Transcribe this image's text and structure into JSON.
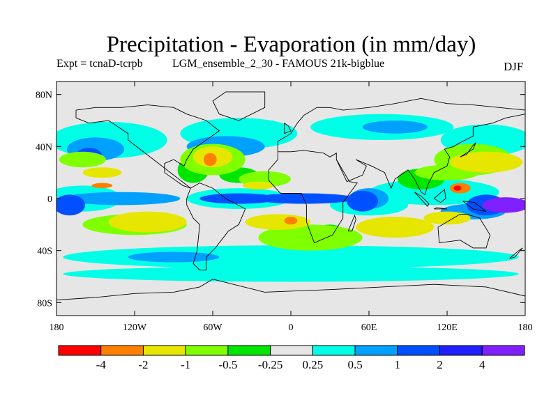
{
  "title": "Precipitation - Evaporation (in mm/day)",
  "experiment_label": "Expt = tcnaD-tcrpb",
  "run_label": "LGM_ensemble_2_30 - FAMOUS 21k-bigblue",
  "season": "DJF",
  "map": {
    "lat_ticks": [
      {
        "value": 80,
        "label": "80N"
      },
      {
        "value": 40,
        "label": "40N"
      },
      {
        "value": 0,
        "label": "0"
      },
      {
        "value": -40,
        "label": "40S"
      },
      {
        "value": -80,
        "label": "80S"
      }
    ],
    "lon_ticks": [
      {
        "value": -180,
        "label": "180"
      },
      {
        "value": -120,
        "label": "120W"
      },
      {
        "value": -60,
        "label": "60W"
      },
      {
        "value": 0,
        "label": "0"
      },
      {
        "value": 60,
        "label": "60E"
      },
      {
        "value": 120,
        "label": "120E"
      },
      {
        "value": 180,
        "label": "180"
      }
    ],
    "lon_range": [
      -180,
      180
    ],
    "lat_range": [
      -90,
      90
    ],
    "background_color": "#e6e6e6"
  },
  "colorbar": {
    "colors": [
      "#ff0000",
      "#ff8000",
      "#e6e600",
      "#80ff00",
      "#00e600",
      "#e6e6e6",
      "#00ffe6",
      "#00a0ff",
      "#0050ff",
      "#2020ff",
      "#8020ff"
    ],
    "labels": [
      "-4",
      "-2",
      "-1",
      "-0.5",
      "-0.25",
      "0.25",
      "0.5",
      "1",
      "2",
      "4"
    ]
  },
  "fields": [
    {
      "color": "#00ffe6",
      "blobs": [
        {
          "lon": -140,
          "lat": 45,
          "rx": 45,
          "ry": 14
        },
        {
          "lon": -40,
          "lat": 50,
          "rx": 45,
          "ry": 12
        },
        {
          "lon": 70,
          "lat": 55,
          "rx": 55,
          "ry": 10
        },
        {
          "lon": 150,
          "lat": 45,
          "rx": 35,
          "ry": 12
        },
        {
          "lon": 0,
          "lat": -45,
          "rx": 175,
          "ry": 9
        },
        {
          "lon": 0,
          "lat": -58,
          "rx": 175,
          "ry": 6
        },
        {
          "lon": -40,
          "lat": 0,
          "rx": 40,
          "ry": 8
        },
        {
          "lon": 110,
          "lat": 5,
          "rx": 50,
          "ry": 10
        },
        {
          "lon": -160,
          "lat": 0,
          "rx": 30,
          "ry": 10
        },
        {
          "lon": 60,
          "lat": -5,
          "rx": 30,
          "ry": 8
        }
      ]
    },
    {
      "color": "#00a0ff",
      "blobs": [
        {
          "lon": -150,
          "lat": 38,
          "rx": 22,
          "ry": 9
        },
        {
          "lon": -50,
          "lat": 40,
          "rx": 30,
          "ry": 8
        },
        {
          "lon": 80,
          "lat": 55,
          "rx": 25,
          "ry": 5
        },
        {
          "lon": -130,
          "lat": 0,
          "rx": 45,
          "ry": 5
        },
        {
          "lon": -90,
          "lat": -45,
          "rx": 35,
          "ry": 4
        },
        {
          "lon": 140,
          "lat": -10,
          "rx": 25,
          "ry": 6
        },
        {
          "lon": 60,
          "lat": 0,
          "rx": 15,
          "ry": 8
        }
      ]
    },
    {
      "color": "#0050ff",
      "blobs": [
        {
          "lon": -170,
          "lat": -5,
          "rx": 12,
          "ry": 8
        },
        {
          "lon": -40,
          "lat": 0,
          "rx": 30,
          "ry": 4
        },
        {
          "lon": 10,
          "lat": 0,
          "rx": 40,
          "ry": 4
        },
        {
          "lon": 55,
          "lat": -2,
          "rx": 12,
          "ry": 8
        },
        {
          "lon": -155,
          "lat": 33,
          "rx": 10,
          "ry": 6
        },
        {
          "lon": 150,
          "lat": -5,
          "rx": 15,
          "ry": 8
        }
      ]
    },
    {
      "color": "#8020ff",
      "blobs": [
        {
          "lon": 165,
          "lat": -5,
          "rx": 18,
          "ry": 6
        }
      ]
    },
    {
      "color": "#00e600",
      "blobs": [
        {
          "lon": -75,
          "lat": 22,
          "rx": 12,
          "ry": 10
        },
        {
          "lon": -40,
          "lat": 18,
          "rx": 15,
          "ry": 6
        },
        {
          "lon": 100,
          "lat": 15,
          "rx": 18,
          "ry": 8
        },
        {
          "lon": 30,
          "lat": -25,
          "rx": 10,
          "ry": 5
        }
      ]
    },
    {
      "color": "#80ff00",
      "blobs": [
        {
          "lon": -160,
          "lat": 30,
          "rx": 18,
          "ry": 6
        },
        {
          "lon": -60,
          "lat": 30,
          "rx": 25,
          "ry": 12
        },
        {
          "lon": 15,
          "lat": -30,
          "rx": 40,
          "ry": 10
        },
        {
          "lon": -120,
          "lat": -20,
          "rx": 40,
          "ry": 8
        },
        {
          "lon": 140,
          "lat": 30,
          "rx": 30,
          "ry": 12
        },
        {
          "lon": 120,
          "lat": 20,
          "rx": 25,
          "ry": 6
        },
        {
          "lon": -20,
          "lat": 15,
          "rx": 20,
          "ry": 6
        }
      ]
    },
    {
      "color": "#e6e600",
      "blobs": [
        {
          "lon": -110,
          "lat": -18,
          "rx": 30,
          "ry": 8
        },
        {
          "lon": -10,
          "lat": -18,
          "rx": 25,
          "ry": 6
        },
        {
          "lon": 80,
          "lat": -22,
          "rx": 30,
          "ry": 8
        },
        {
          "lon": 150,
          "lat": 28,
          "rx": 28,
          "ry": 8
        },
        {
          "lon": -60,
          "lat": 32,
          "rx": 15,
          "ry": 8
        },
        {
          "lon": -145,
          "lat": 20,
          "rx": 15,
          "ry": 4
        },
        {
          "lon": 120,
          "lat": -15,
          "rx": 18,
          "ry": 5
        },
        {
          "lon": -25,
          "lat": 10,
          "rx": 12,
          "ry": 3
        }
      ]
    },
    {
      "color": "#ff8000",
      "blobs": [
        {
          "lon": -62,
          "lat": 30,
          "rx": 5,
          "ry": 5
        },
        {
          "lon": 130,
          "lat": 8,
          "rx": 8,
          "ry": 4
        },
        {
          "lon": 0,
          "lat": -17,
          "rx": 5,
          "ry": 3
        },
        {
          "lon": -145,
          "lat": 10,
          "rx": 8,
          "ry": 2
        }
      ]
    },
    {
      "color": "#ff0000",
      "blobs": [
        {
          "lon": 128,
          "lat": 8,
          "rx": 3,
          "ry": 2
        }
      ]
    }
  ],
  "coasts": [
    [
      [
        -165,
        68
      ],
      [
        -150,
        70
      ],
      [
        -130,
        70
      ],
      [
        -110,
        72
      ],
      [
        -90,
        70
      ],
      [
        -80,
        65
      ],
      [
        -65,
        60
      ],
      [
        -55,
        52
      ],
      [
        -65,
        45
      ],
      [
        -75,
        38
      ],
      [
        -80,
        30
      ],
      [
        -82,
        25
      ],
      [
        -90,
        30
      ],
      [
        -97,
        27
      ],
      [
        -97,
        20
      ],
      [
        -90,
        15
      ],
      [
        -83,
        10
      ],
      [
        -77,
        8
      ]
    ],
    [
      [
        -77,
        8
      ],
      [
        -125,
        45
      ],
      [
        -125,
        50
      ],
      [
        -140,
        60
      ],
      [
        -155,
        58
      ],
      [
        -165,
        62
      ],
      [
        -165,
        68
      ]
    ],
    [
      [
        -77,
        8
      ],
      [
        -80,
        0
      ],
      [
        -80,
        -5
      ],
      [
        -75,
        -15
      ],
      [
        -70,
        -20
      ],
      [
        -72,
        -40
      ],
      [
        -75,
        -50
      ],
      [
        -70,
        -55
      ],
      [
        -65,
        -55
      ],
      [
        -65,
        -45
      ],
      [
        -58,
        -38
      ],
      [
        -48,
        -25
      ],
      [
        -40,
        -20
      ],
      [
        -35,
        -8
      ],
      [
        -50,
        0
      ],
      [
        -60,
        8
      ],
      [
        -70,
        12
      ],
      [
        -77,
        8
      ]
    ],
    [
      [
        -50,
        82
      ],
      [
        -20,
        82
      ],
      [
        -20,
        70
      ],
      [
        -40,
        60
      ],
      [
        -55,
        65
      ],
      [
        -60,
        75
      ],
      [
        -50,
        82
      ]
    ],
    [
      [
        -10,
        36
      ],
      [
        -10,
        44
      ],
      [
        0,
        50
      ],
      [
        5,
        58
      ],
      [
        10,
        64
      ],
      [
        20,
        70
      ],
      [
        30,
        70
      ],
      [
        40,
        68
      ],
      [
        60,
        70
      ],
      [
        80,
        73
      ],
      [
        100,
        77
      ],
      [
        120,
        73
      ],
      [
        140,
        72
      ],
      [
        160,
        70
      ],
      [
        180,
        68
      ]
    ],
    [
      [
        -10,
        36
      ],
      [
        0,
        36
      ],
      [
        10,
        37
      ],
      [
        25,
        35
      ],
      [
        30,
        32
      ],
      [
        35,
        35
      ],
      [
        35,
        30
      ],
      [
        45,
        13
      ],
      [
        51,
        12
      ],
      [
        40,
        -3
      ],
      [
        40,
        -15
      ],
      [
        32,
        -28
      ],
      [
        18,
        -34
      ],
      [
        12,
        -18
      ],
      [
        12,
        -5
      ],
      [
        8,
        4
      ],
      [
        -8,
        4
      ],
      [
        -17,
        14
      ],
      [
        -17,
        22
      ],
      [
        -10,
        30
      ],
      [
        -10,
        36
      ]
    ],
    [
      [
        35,
        30
      ],
      [
        43,
        13
      ],
      [
        55,
        18
      ],
      [
        58,
        25
      ],
      [
        50,
        30
      ],
      [
        62,
        25
      ],
      [
        72,
        20
      ],
      [
        77,
        8
      ],
      [
        80,
        15
      ],
      [
        90,
        22
      ],
      [
        95,
        15
      ],
      [
        100,
        5
      ],
      [
        103,
        3
      ],
      [
        105,
        10
      ],
      [
        110,
        20
      ],
      [
        120,
        25
      ],
      [
        122,
        32
      ],
      [
        118,
        38
      ],
      [
        125,
        40
      ],
      [
        130,
        43
      ],
      [
        140,
        48
      ],
      [
        140,
        55
      ],
      [
        155,
        58
      ],
      [
        165,
        62
      ],
      [
        180,
        65
      ]
    ],
    [
      [
        113,
        -22
      ],
      [
        114,
        -34
      ],
      [
        130,
        -32
      ],
      [
        140,
        -38
      ],
      [
        150,
        -38
      ],
      [
        153,
        -28
      ],
      [
        145,
        -15
      ],
      [
        135,
        -12
      ],
      [
        130,
        -12
      ],
      [
        113,
        -22
      ]
    ],
    [
      [
        130,
        32
      ],
      [
        135,
        35
      ],
      [
        140,
        38
      ],
      [
        142,
        43
      ],
      [
        140,
        41
      ],
      [
        135,
        34
      ],
      [
        130,
        32
      ]
    ],
    [
      [
        -5,
        50
      ],
      [
        0,
        52
      ],
      [
        -2,
        56
      ],
      [
        -5,
        58
      ],
      [
        -5,
        50
      ]
    ],
    [
      [
        95,
        5
      ],
      [
        105,
        -6
      ],
      [
        106,
        -4
      ],
      [
        100,
        2
      ],
      [
        95,
        5
      ]
    ],
    [
      [
        110,
        -8
      ],
      [
        120,
        -8
      ],
      [
        112,
        -7
      ],
      [
        110,
        -8
      ]
    ],
    [
      [
        110,
        0
      ],
      [
        118,
        7
      ],
      [
        119,
        0
      ],
      [
        115,
        -3
      ],
      [
        110,
        0
      ]
    ],
    [
      [
        132,
        -2
      ],
      [
        141,
        -3
      ],
      [
        150,
        -10
      ],
      [
        140,
        -8
      ],
      [
        132,
        -2
      ]
    ],
    [
      [
        168,
        -46
      ],
      [
        175,
        -40
      ],
      [
        178,
        -38
      ],
      [
        172,
        -45
      ],
      [
        168,
        -46
      ]
    ],
    [
      [
        44,
        -25
      ],
      [
        49,
        -13
      ],
      [
        50,
        -16
      ],
      [
        47,
        -25
      ],
      [
        44,
        -25
      ]
    ],
    [
      [
        -60,
        -62
      ],
      [
        -20,
        -72
      ],
      [
        30,
        -70
      ],
      [
        70,
        -68
      ],
      [
        110,
        -66
      ],
      [
        150,
        -68
      ],
      [
        180,
        -75
      ]
    ],
    [
      [
        -180,
        -78
      ],
      [
        -150,
        -76
      ],
      [
        -120,
        -73
      ],
      [
        -90,
        -72
      ],
      [
        -70,
        -68
      ],
      [
        -60,
        -62
      ]
    ]
  ]
}
